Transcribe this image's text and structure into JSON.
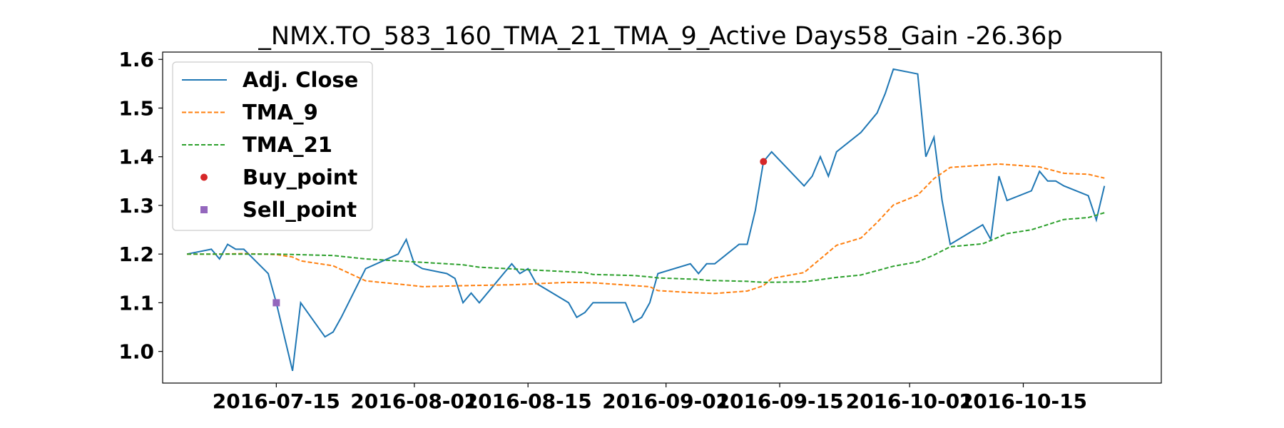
{
  "chart_data": {
    "type": "line",
    "title": "_NMX.TO_583_160_TMA_21_TMA_9_Active Days58_Gain -26.36p",
    "xlabel": "",
    "ylabel": "",
    "xlim": [
      "2016-07-01",
      "2016-11-01"
    ],
    "ylim": [
      0.935,
      1.615
    ],
    "x_ticks": [
      "2016-07-15",
      "2016-08-01",
      "2016-08-15",
      "2016-09-01",
      "2016-09-15",
      "2016-10-01",
      "2016-10-15"
    ],
    "y_ticks": [
      1.0,
      1.1,
      1.2,
      1.3,
      1.4,
      1.5,
      1.6
    ],
    "y_tick_labels": [
      "1.0",
      "1.1",
      "1.2",
      "1.3",
      "1.4",
      "1.5",
      "1.6"
    ],
    "grid": false,
    "legend_position": "top-left",
    "series": [
      {
        "name": "Adj. Close",
        "style": "solid",
        "color": "#1f77b4",
        "points": [
          [
            "2016-07-04",
            1.2
          ],
          [
            "2016-07-07",
            1.21
          ],
          [
            "2016-07-08",
            1.19
          ],
          [
            "2016-07-09",
            1.22
          ],
          [
            "2016-07-10",
            1.21
          ],
          [
            "2016-07-11",
            1.21
          ],
          [
            "2016-07-14",
            1.16
          ],
          [
            "2016-07-15",
            1.1
          ],
          [
            "2016-07-17",
            0.96
          ],
          [
            "2016-07-18",
            1.1
          ],
          [
            "2016-07-21",
            1.03
          ],
          [
            "2016-07-22",
            1.04
          ],
          [
            "2016-07-23",
            1.07
          ],
          [
            "2016-07-26",
            1.17
          ],
          [
            "2016-07-30",
            1.2
          ],
          [
            "2016-07-31",
            1.23
          ],
          [
            "2016-08-01",
            1.18
          ],
          [
            "2016-08-02",
            1.17
          ],
          [
            "2016-08-05",
            1.16
          ],
          [
            "2016-08-06",
            1.15
          ],
          [
            "2016-08-07",
            1.1
          ],
          [
            "2016-08-08",
            1.12
          ],
          [
            "2016-08-09",
            1.1
          ],
          [
            "2016-08-13",
            1.18
          ],
          [
            "2016-08-14",
            1.16
          ],
          [
            "2016-08-15",
            1.17
          ],
          [
            "2016-08-16",
            1.14
          ],
          [
            "2016-08-20",
            1.1
          ],
          [
            "2016-08-21",
            1.07
          ],
          [
            "2016-08-22",
            1.08
          ],
          [
            "2016-08-23",
            1.1
          ],
          [
            "2016-08-27",
            1.1
          ],
          [
            "2016-08-28",
            1.06
          ],
          [
            "2016-08-29",
            1.07
          ],
          [
            "2016-08-30",
            1.1
          ],
          [
            "2016-08-31",
            1.16
          ],
          [
            "2016-09-04",
            1.18
          ],
          [
            "2016-09-05",
            1.16
          ],
          [
            "2016-09-06",
            1.18
          ],
          [
            "2016-09-07",
            1.18
          ],
          [
            "2016-09-10",
            1.22
          ],
          [
            "2016-09-11",
            1.22
          ],
          [
            "2016-09-12",
            1.29
          ],
          [
            "2016-09-13",
            1.39
          ],
          [
            "2016-09-14",
            1.41
          ],
          [
            "2016-09-18",
            1.34
          ],
          [
            "2016-09-19",
            1.36
          ],
          [
            "2016-09-20",
            1.4
          ],
          [
            "2016-09-21",
            1.36
          ],
          [
            "2016-09-22",
            1.41
          ],
          [
            "2016-09-25",
            1.45
          ],
          [
            "2016-09-27",
            1.49
          ],
          [
            "2016-09-28",
            1.53
          ],
          [
            "2016-09-29",
            1.58
          ],
          [
            "2016-10-02",
            1.57
          ],
          [
            "2016-10-03",
            1.4
          ],
          [
            "2016-10-04",
            1.44
          ],
          [
            "2016-10-05",
            1.31
          ],
          [
            "2016-10-06",
            1.22
          ],
          [
            "2016-10-10",
            1.26
          ],
          [
            "2016-10-11",
            1.23
          ],
          [
            "2016-10-12",
            1.36
          ],
          [
            "2016-10-13",
            1.31
          ],
          [
            "2016-10-16",
            1.33
          ],
          [
            "2016-10-17",
            1.37
          ],
          [
            "2016-10-18",
            1.35
          ],
          [
            "2016-10-19",
            1.35
          ],
          [
            "2016-10-20",
            1.34
          ],
          [
            "2016-10-23",
            1.32
          ],
          [
            "2016-10-24",
            1.27
          ],
          [
            "2016-10-25",
            1.34
          ]
        ]
      },
      {
        "name": "TMA_9",
        "style": "dashed",
        "color": "#ff7f0e",
        "points": [
          [
            "2016-07-04",
            1.2
          ],
          [
            "2016-07-08",
            1.2
          ],
          [
            "2016-07-11",
            1.201
          ],
          [
            "2016-07-15",
            1.199
          ],
          [
            "2016-07-17",
            1.194
          ],
          [
            "2016-07-18",
            1.186
          ],
          [
            "2016-07-22",
            1.176
          ],
          [
            "2016-07-26",
            1.145
          ],
          [
            "2016-08-01",
            1.135
          ],
          [
            "2016-08-02",
            1.133
          ],
          [
            "2016-08-07",
            1.135
          ],
          [
            "2016-08-13",
            1.137
          ],
          [
            "2016-08-20",
            1.142
          ],
          [
            "2016-08-23",
            1.141
          ],
          [
            "2016-08-30",
            1.133
          ],
          [
            "2016-08-31",
            1.125
          ],
          [
            "2016-09-04",
            1.121
          ],
          [
            "2016-09-07",
            1.119
          ],
          [
            "2016-09-11",
            1.124
          ],
          [
            "2016-09-13",
            1.135
          ],
          [
            "2016-09-14",
            1.15
          ],
          [
            "2016-09-18",
            1.162
          ],
          [
            "2016-09-20",
            1.19
          ],
          [
            "2016-09-22",
            1.218
          ],
          [
            "2016-09-25",
            1.233
          ],
          [
            "2016-09-27",
            1.265
          ],
          [
            "2016-09-29",
            1.301
          ],
          [
            "2016-10-02",
            1.321
          ],
          [
            "2016-10-04",
            1.355
          ],
          [
            "2016-10-06",
            1.378
          ],
          [
            "2016-10-12",
            1.385
          ],
          [
            "2016-10-17",
            1.379
          ],
          [
            "2016-10-20",
            1.366
          ],
          [
            "2016-10-23",
            1.364
          ],
          [
            "2016-10-25",
            1.356
          ]
        ]
      },
      {
        "name": "TMA_21",
        "style": "dashed",
        "color": "#2ca02c",
        "points": [
          [
            "2016-07-04",
            1.2
          ],
          [
            "2016-07-15",
            1.2
          ],
          [
            "2016-07-22",
            1.197
          ],
          [
            "2016-07-26",
            1.19
          ],
          [
            "2016-08-01",
            1.184
          ],
          [
            "2016-08-07",
            1.178
          ],
          [
            "2016-08-09",
            1.173
          ],
          [
            "2016-08-16",
            1.167
          ],
          [
            "2016-08-22",
            1.162
          ],
          [
            "2016-08-23",
            1.158
          ],
          [
            "2016-08-28",
            1.156
          ],
          [
            "2016-08-30",
            1.153
          ],
          [
            "2016-08-31",
            1.151
          ],
          [
            "2016-09-05",
            1.148
          ],
          [
            "2016-09-06",
            1.146
          ],
          [
            "2016-09-11",
            1.144
          ],
          [
            "2016-09-13",
            1.142
          ],
          [
            "2016-09-18",
            1.143
          ],
          [
            "2016-09-22",
            1.152
          ],
          [
            "2016-09-25",
            1.157
          ],
          [
            "2016-09-29",
            1.175
          ],
          [
            "2016-10-02",
            1.184
          ],
          [
            "2016-10-04",
            1.198
          ],
          [
            "2016-10-06",
            1.215
          ],
          [
            "2016-10-10",
            1.221
          ],
          [
            "2016-10-13",
            1.242
          ],
          [
            "2016-10-16",
            1.25
          ],
          [
            "2016-10-20",
            1.271
          ],
          [
            "2016-10-23",
            1.275
          ],
          [
            "2016-10-25",
            1.285
          ]
        ]
      }
    ],
    "markers": [
      {
        "name": "Buy_point",
        "shape": "circle",
        "color": "#d62728",
        "points": [
          [
            "2016-09-13",
            1.39
          ]
        ]
      },
      {
        "name": "Sell_point",
        "shape": "square",
        "color": "#9467bd",
        "points": [
          [
            "2016-07-15",
            1.1
          ]
        ]
      }
    ]
  }
}
